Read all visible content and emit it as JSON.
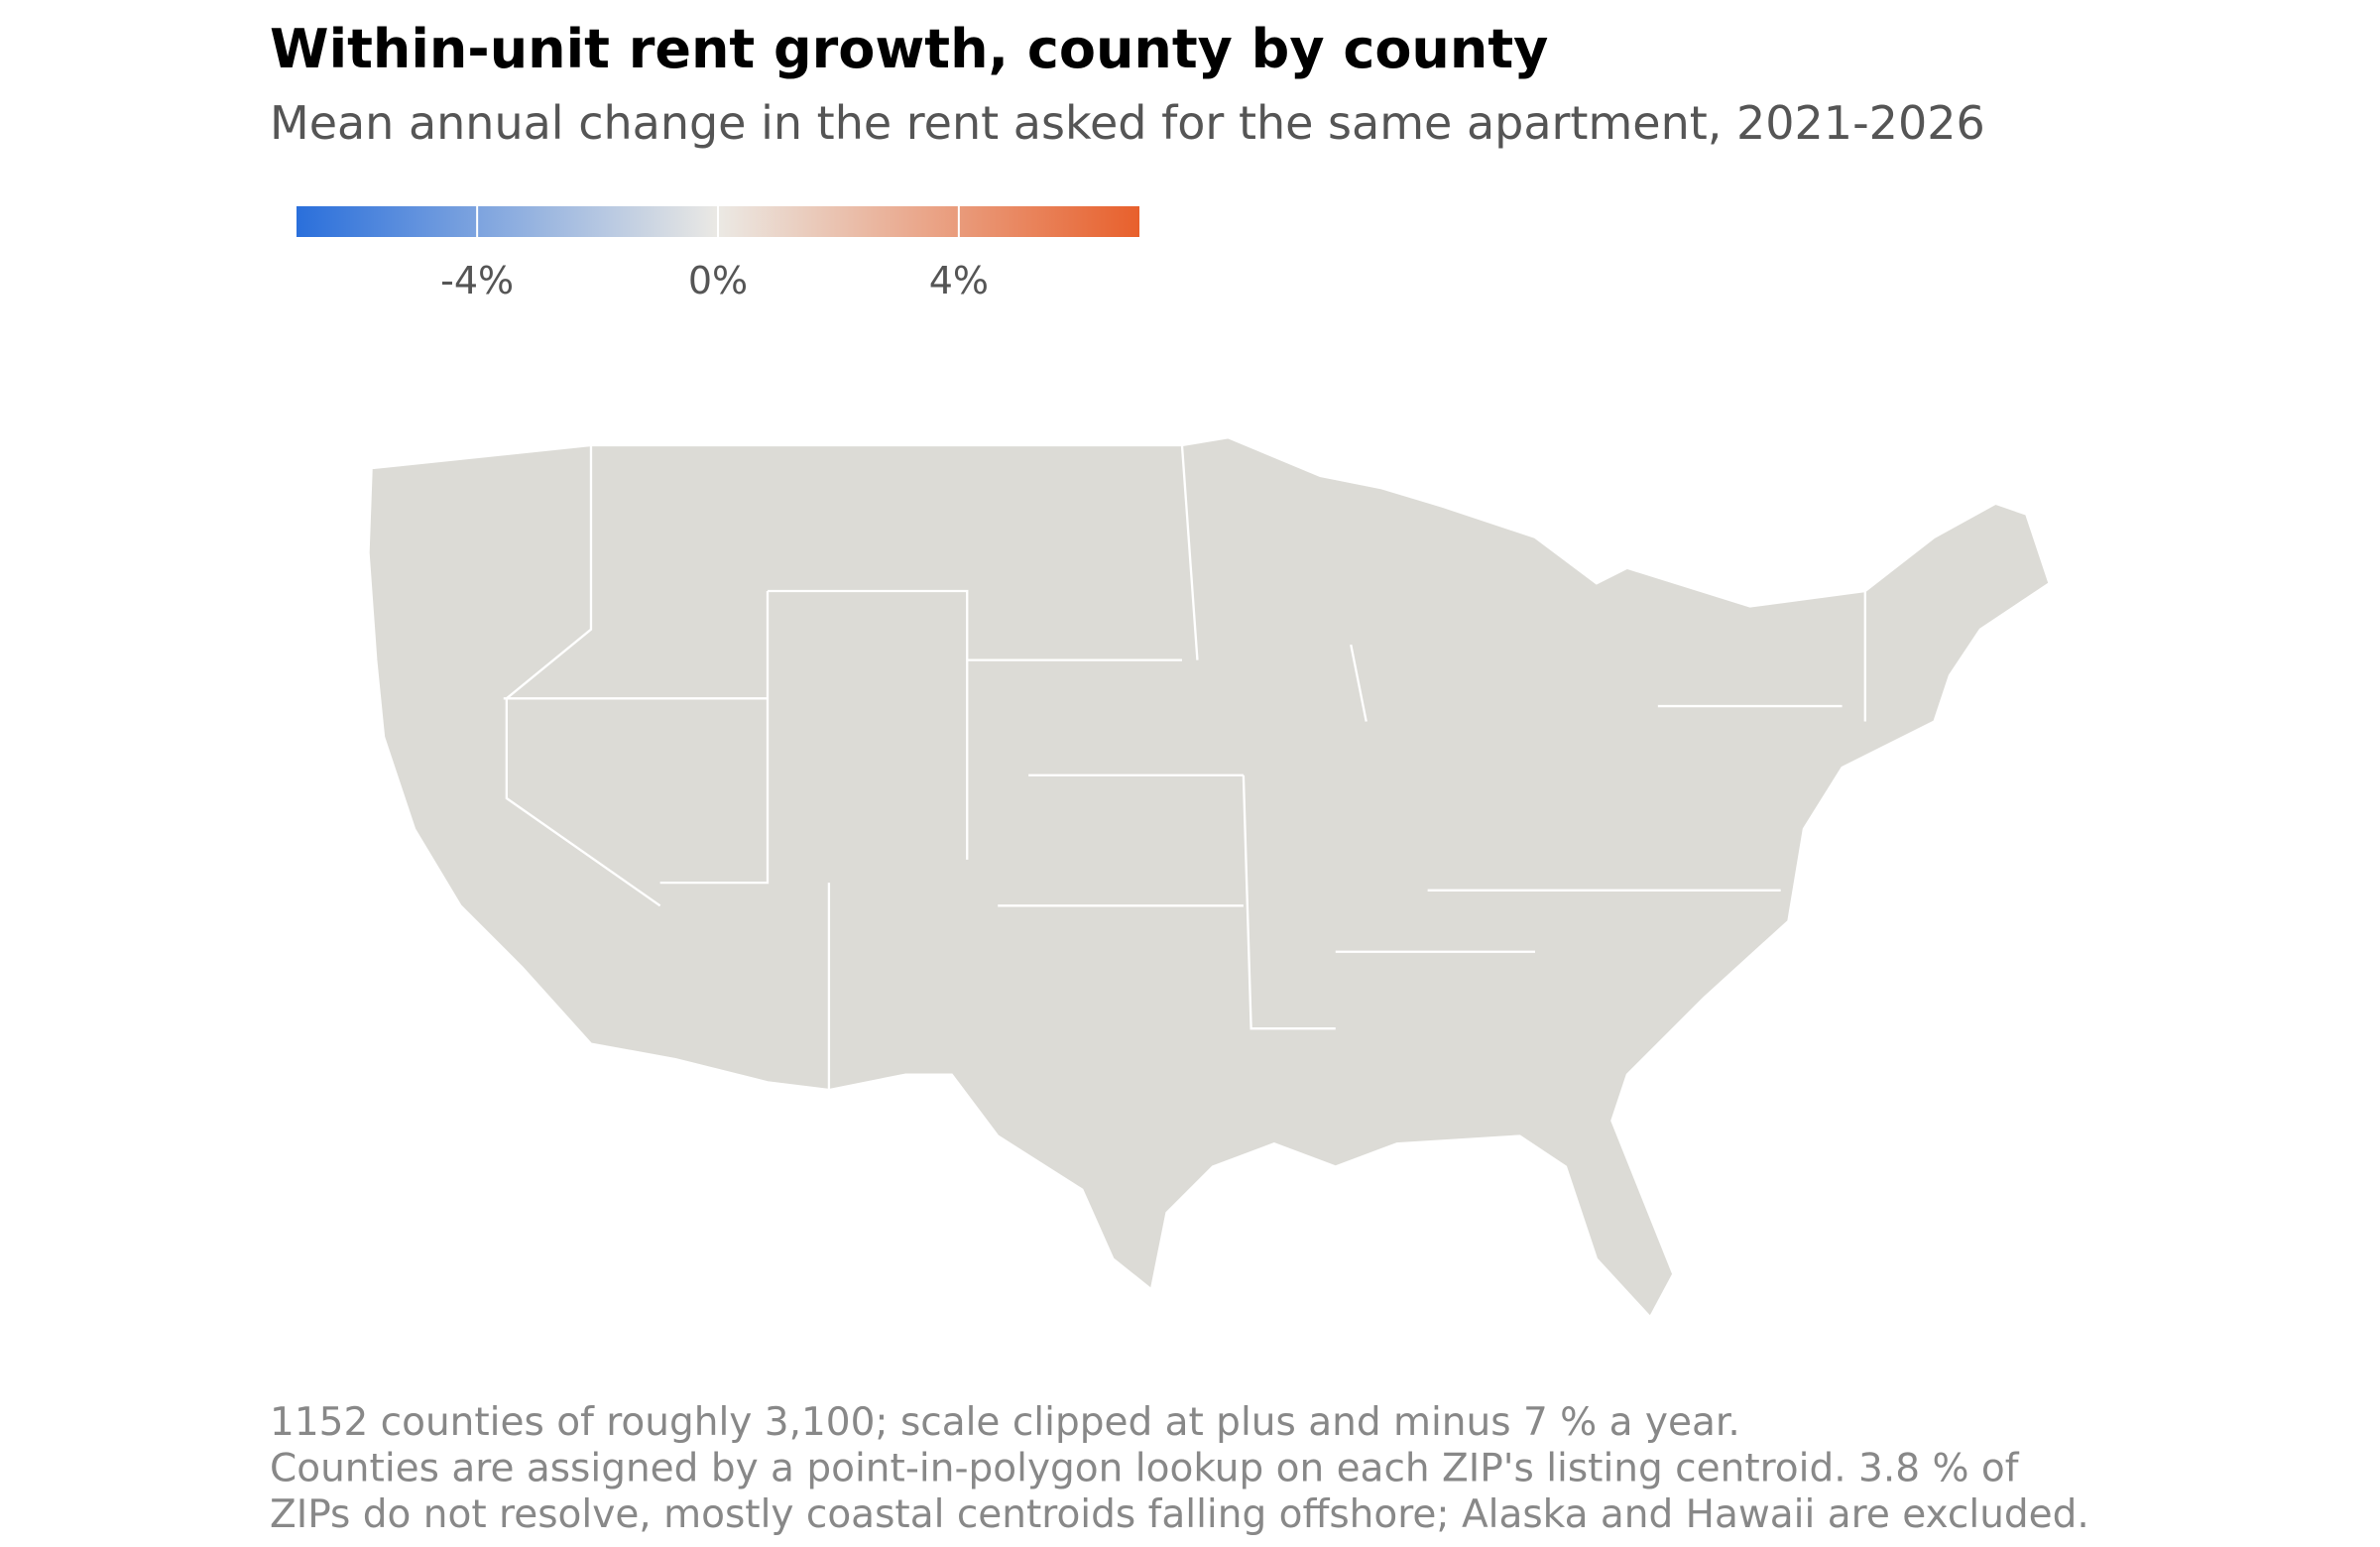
{
  "title": "Within-unit rent growth, county by county",
  "subtitle": "Mean annual change in the rent asked for the same apartment, 2021-2026",
  "colorbar": {
    "lim": [
      -7,
      7
    ],
    "ticks": [
      {
        "value": -4,
        "label": "-4%"
      },
      {
        "value": 0,
        "label": "0%"
      },
      {
        "value": 4,
        "label": "4%"
      }
    ],
    "colors": [
      "#2a6fdb",
      "#ebe9e4",
      "#e8602c"
    ]
  },
  "notes": [
    "1152 counties of roughly 3,100; scale clipped at plus and minus 7 % a year.",
    "Counties are assigned by a point-in-polygon lookup on each ZIP's listing centroid. 3.8 % of",
    "ZIPs do not resolve, mostly coastal centroids falling offshore; Alaska and Hawaii are excluded."
  ]
}
